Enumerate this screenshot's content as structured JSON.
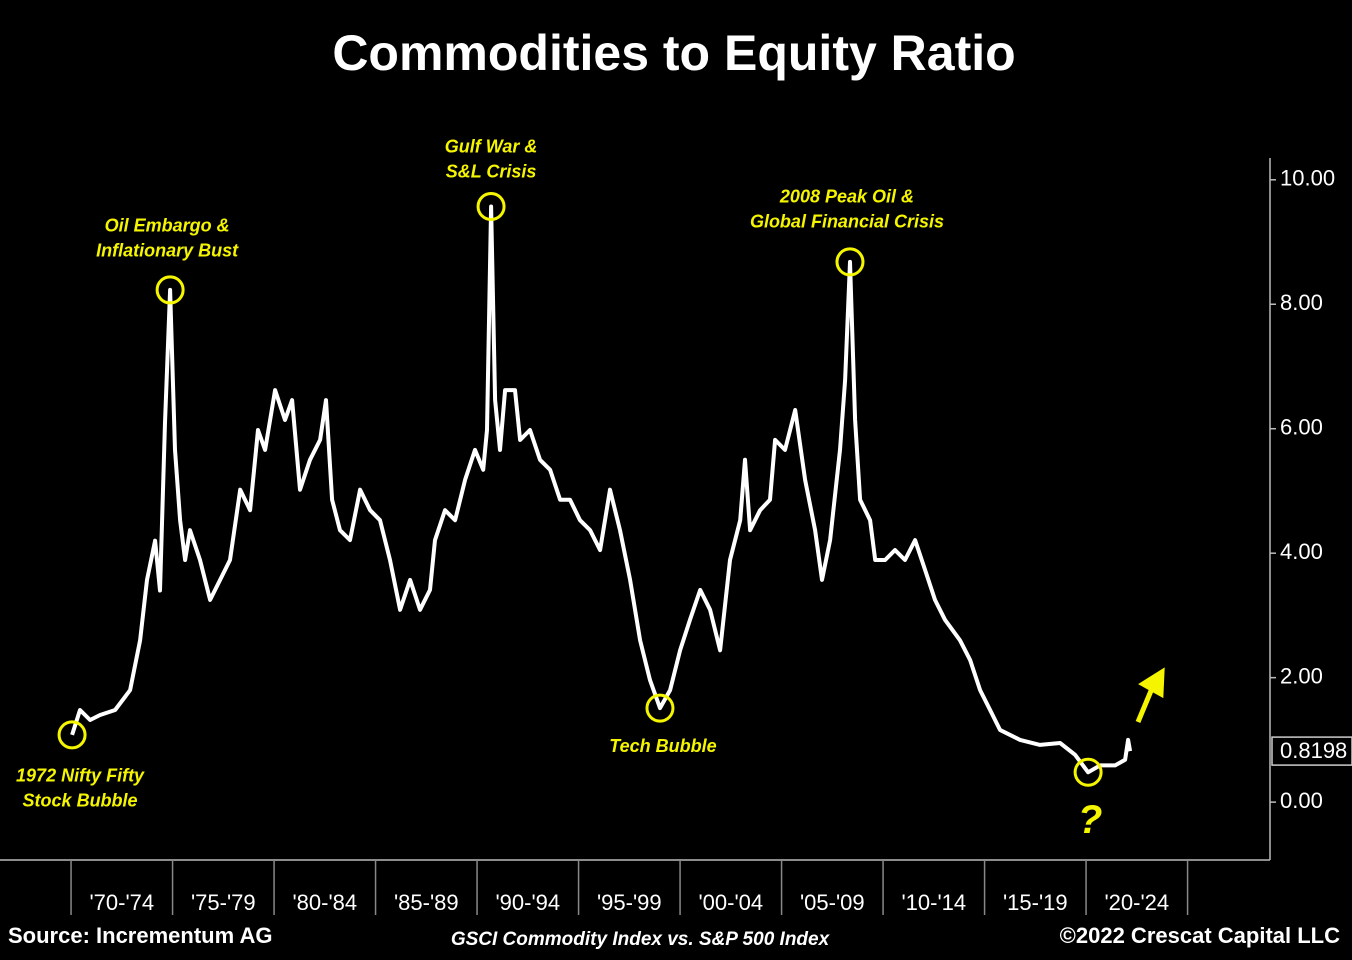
{
  "chart_data": {
    "type": "line",
    "title": "Commodities to Equity Ratio",
    "subtitle": "GSCI Commodity Index vs. S&P 500 Index",
    "source": "Source: Incrementum AG",
    "copyright": "©2022 Crescat Capital LLC",
    "categories": [
      "'70-'74",
      "'75-'79",
      "'80-'84",
      "'85-'89",
      "'90-'94",
      "'95-'99",
      "'00-'04",
      "'05-'09",
      "'10-'14",
      "'15-'19",
      "'20-'24"
    ],
    "xticks": [
      1970,
      1975,
      1980,
      1985,
      1990,
      1995,
      2000,
      2005,
      2010,
      2015,
      2020,
      2025
    ],
    "xlim": [
      1966.5,
      2029.06
    ],
    "ylim": [
      -0.93,
      10.35
    ],
    "yticks": [
      {
        "value": 0,
        "label": "0.00"
      },
      {
        "value": 2,
        "label": "2.00"
      },
      {
        "value": 4,
        "label": "4.00"
      },
      {
        "value": 6,
        "label": "6.00"
      },
      {
        "value": 8,
        "label": "8.00"
      },
      {
        "value": 10,
        "label": "10.00"
      }
    ],
    "series": [
      {
        "color": "#ffffff",
        "x": [
          1970.05,
          1970.44,
          1970.94,
          1971.43,
          1972.17,
          1972.91,
          1973.4,
          1973.74,
          1974.14,
          1974.38,
          1974.63,
          1974.88,
          1975.12,
          1975.37,
          1975.62,
          1975.86,
          1976.35,
          1976.85,
          1977.34,
          1977.83,
          1978.33,
          1978.82,
          1979.21,
          1979.56,
          1980.05,
          1980.54,
          1980.89,
          1981.28,
          1981.77,
          1982.27,
          1982.56,
          1982.86,
          1983.25,
          1983.74,
          1984.24,
          1984.73,
          1985.22,
          1985.71,
          1986.21,
          1986.7,
          1987.19,
          1987.68,
          1987.93,
          1988.42,
          1988.92,
          1989.41,
          1989.9,
          1990.3,
          1990.49,
          1990.69,
          1990.89,
          1991.13,
          1991.38,
          1991.87,
          1992.12,
          1992.61,
          1993.1,
          1993.6,
          1994.09,
          1994.58,
          1995.07,
          1995.57,
          1996.06,
          1996.55,
          1997.04,
          1997.54,
          1998.03,
          1998.52,
          1999.01,
          1999.51,
          2000.0,
          2000.49,
          2000.99,
          2001.48,
          2001.97,
          2002.46,
          2002.96,
          2003.2,
          2003.45,
          2003.94,
          2004.43,
          2004.68,
          2005.17,
          2005.67,
          2006.16,
          2006.65,
          2006.99,
          2007.39,
          2007.88,
          2008.13,
          2008.37,
          2008.62,
          2008.87,
          2009.36,
          2009.61,
          2010.1,
          2010.59,
          2011.08,
          2011.58,
          2012.07,
          2012.56,
          2013.05,
          2013.79,
          2014.29,
          2014.78,
          2015.27,
          2015.76,
          2016.75,
          2017.73,
          2018.72,
          2019.46,
          2020.1,
          2020.69,
          2021.43,
          2021.92,
          2022.07,
          2022.17
        ],
        "values": [
          1.08,
          1.48,
          1.32,
          1.4,
          1.48,
          1.8,
          2.6,
          3.57,
          4.2,
          3.4,
          6.1,
          8.23,
          5.66,
          4.53,
          3.89,
          4.37,
          3.89,
          3.25,
          3.57,
          3.89,
          5.02,
          4.69,
          5.98,
          5.66,
          6.62,
          6.14,
          6.46,
          5.02,
          5.5,
          5.82,
          6.46,
          4.86,
          4.37,
          4.21,
          5.02,
          4.69,
          4.53,
          3.89,
          3.09,
          3.57,
          3.09,
          3.41,
          4.21,
          4.69,
          4.53,
          5.18,
          5.66,
          5.34,
          5.98,
          9.57,
          6.46,
          5.66,
          6.62,
          6.62,
          5.82,
          5.98,
          5.5,
          5.34,
          4.86,
          4.86,
          4.53,
          4.37,
          4.05,
          5.02,
          4.37,
          3.57,
          2.6,
          1.96,
          1.51,
          1.8,
          2.44,
          2.93,
          3.41,
          3.09,
          2.44,
          3.89,
          4.53,
          5.5,
          4.37,
          4.69,
          4.86,
          5.82,
          5.66,
          6.3,
          5.18,
          4.37,
          3.57,
          4.21,
          5.66,
          6.78,
          8.68,
          6.14,
          4.86,
          4.53,
          3.89,
          3.89,
          4.05,
          3.89,
          4.21,
          3.73,
          3.25,
          2.93,
          2.6,
          2.28,
          1.8,
          1.48,
          1.16,
          1.0,
          0.92,
          0.95,
          0.76,
          0.48,
          0.59,
          0.59,
          0.68,
          1.0,
          0.8198
        ],
        "value_labels": {
          "116": "0.8198"
        }
      }
    ],
    "annotations": [
      {
        "lines": [
          "1972 Nifty Fifty",
          "Stock Bubble"
        ]
      },
      {
        "lines": [
          "Oil Embargo &",
          "Inflationary Bust"
        ]
      },
      {
        "lines": [
          "Gulf War &",
          "S&L Crisis"
        ]
      },
      {
        "lines": [
          "Tech Bubble"
        ]
      },
      {
        "lines": [
          "2008 Peak Oil &",
          "Global Financial Crisis"
        ]
      },
      {
        "lines": [
          "?"
        ]
      }
    ]
  }
}
